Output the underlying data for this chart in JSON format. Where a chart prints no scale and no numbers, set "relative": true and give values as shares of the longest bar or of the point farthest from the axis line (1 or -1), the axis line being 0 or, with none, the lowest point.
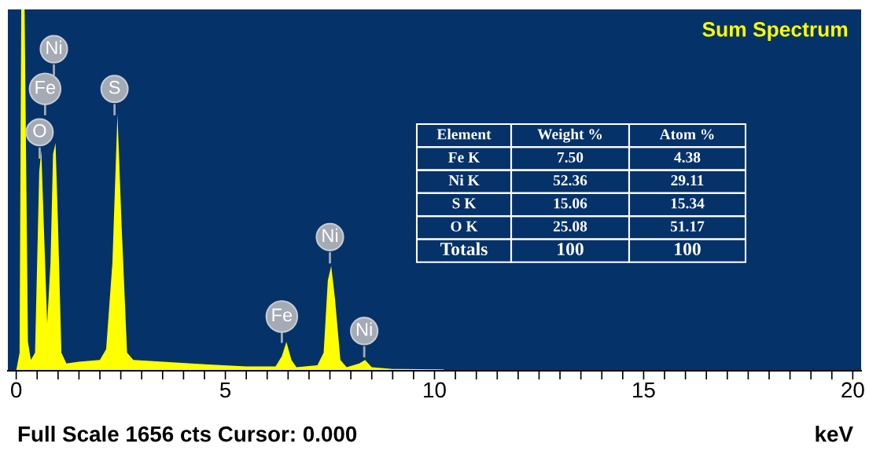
{
  "chart_data": {
    "type": "area",
    "title": "Sum Spectrum",
    "xlabel": "keV",
    "relative": true,
    "x": [
      0,
      0.08,
      0.12,
      0.2,
      0.28,
      0.35,
      0.45,
      0.55,
      0.6,
      0.66,
      0.74,
      0.82,
      0.88,
      0.94,
      1.0,
      1.08,
      1.2,
      1.5,
      2.0,
      2.15,
      2.3,
      2.42,
      2.52,
      2.65,
      2.8,
      3.5,
      4.5,
      5.5,
      6.2,
      6.35,
      6.46,
      6.58,
      6.7,
      7.2,
      7.35,
      7.45,
      7.53,
      7.62,
      7.75,
      7.9,
      8.2,
      8.34,
      8.5,
      9.0,
      10.2,
      10.3
    ],
    "series": [
      {
        "color": "#ffff00",
        "values": [
          0,
          0.05,
          1.0,
          1.0,
          0.08,
          0.03,
          0.05,
          0.55,
          0.61,
          0.4,
          0.13,
          0.3,
          0.6,
          0.63,
          0.4,
          0.05,
          0.02,
          0.025,
          0.03,
          0.06,
          0.3,
          0.71,
          0.4,
          0.05,
          0.03,
          0.025,
          0.018,
          0.012,
          0.012,
          0.04,
          0.08,
          0.03,
          0.01,
          0.015,
          0.05,
          0.25,
          0.29,
          0.2,
          0.03,
          0.01,
          0.02,
          0.03,
          0.01,
          0.005,
          0.004,
          0
        ]
      }
    ],
    "xlim": [
      -0.2,
      20.2
    ],
    "xticks": [
      0,
      {
        "value": 0.5,
        "label": null
      },
      {
        "value": 1,
        "label": null
      },
      {
        "value": 1.5,
        "label": null
      },
      {
        "value": 2,
        "label": null
      },
      {
        "value": 2.5,
        "label": null
      },
      {
        "value": 3,
        "label": null
      },
      {
        "value": 3.5,
        "label": null
      },
      {
        "value": 4,
        "label": null
      },
      {
        "value": 4.5,
        "label": null
      },
      5,
      {
        "value": 5.5,
        "label": null
      },
      {
        "value": 6,
        "label": null
      },
      {
        "value": 6.5,
        "label": null
      },
      {
        "value": 7,
        "label": null
      },
      {
        "value": 7.5,
        "label": null
      },
      {
        "value": 8,
        "label": null
      },
      {
        "value": 8.5,
        "label": null
      },
      {
        "value": 9,
        "label": null
      },
      {
        "value": 9.5,
        "label": null
      },
      10,
      {
        "value": 10.5,
        "label": null
      },
      {
        "value": 11,
        "label": null
      },
      {
        "value": 11.5,
        "label": null
      },
      {
        "value": 12,
        "label": null
      },
      {
        "value": 12.5,
        "label": null
      },
      {
        "value": 13,
        "label": null
      },
      {
        "value": 13.5,
        "label": null
      },
      {
        "value": 14,
        "label": null
      },
      {
        "value": 14.5,
        "label": null
      },
      15,
      {
        "value": 15.5,
        "label": null
      },
      {
        "value": 16,
        "label": null
      },
      {
        "value": 16.5,
        "label": null
      },
      {
        "value": 17,
        "label": null
      },
      {
        "value": 17.5,
        "label": null
      },
      {
        "value": 18,
        "label": null
      },
      {
        "value": 18.5,
        "label": null
      },
      {
        "value": 19,
        "label": null
      },
      {
        "value": 19.5,
        "label": null
      },
      20
    ],
    "grid": false,
    "legend": false,
    "annotations": [
      "Full Scale 1656 cts Cursor: 0.000",
      {
        "text": "O",
        "x": 0.56,
        "y": 0.66
      },
      {
        "text": "Fe",
        "x": 0.69,
        "y": 0.78
      },
      {
        "text": "Ni",
        "x": 0.9,
        "y": 0.89
      },
      {
        "text": "S",
        "x": 2.35,
        "y": 0.78
      },
      {
        "text": "Fe",
        "x": 6.35,
        "y": 0.15
      },
      {
        "text": "Ni",
        "x": 7.5,
        "y": 0.37
      },
      {
        "text": "Ni",
        "x": 8.32,
        "y": 0.11
      },
      "Element\tWeight %\tAtom %",
      "Fe K\t7.50\t4.38",
      "Ni K\t52.36\t29.11",
      "S K\t15.06\t15.34",
      "O K\t25.08\t51.17",
      "Totals\t100\t100"
    ]
  }
}
